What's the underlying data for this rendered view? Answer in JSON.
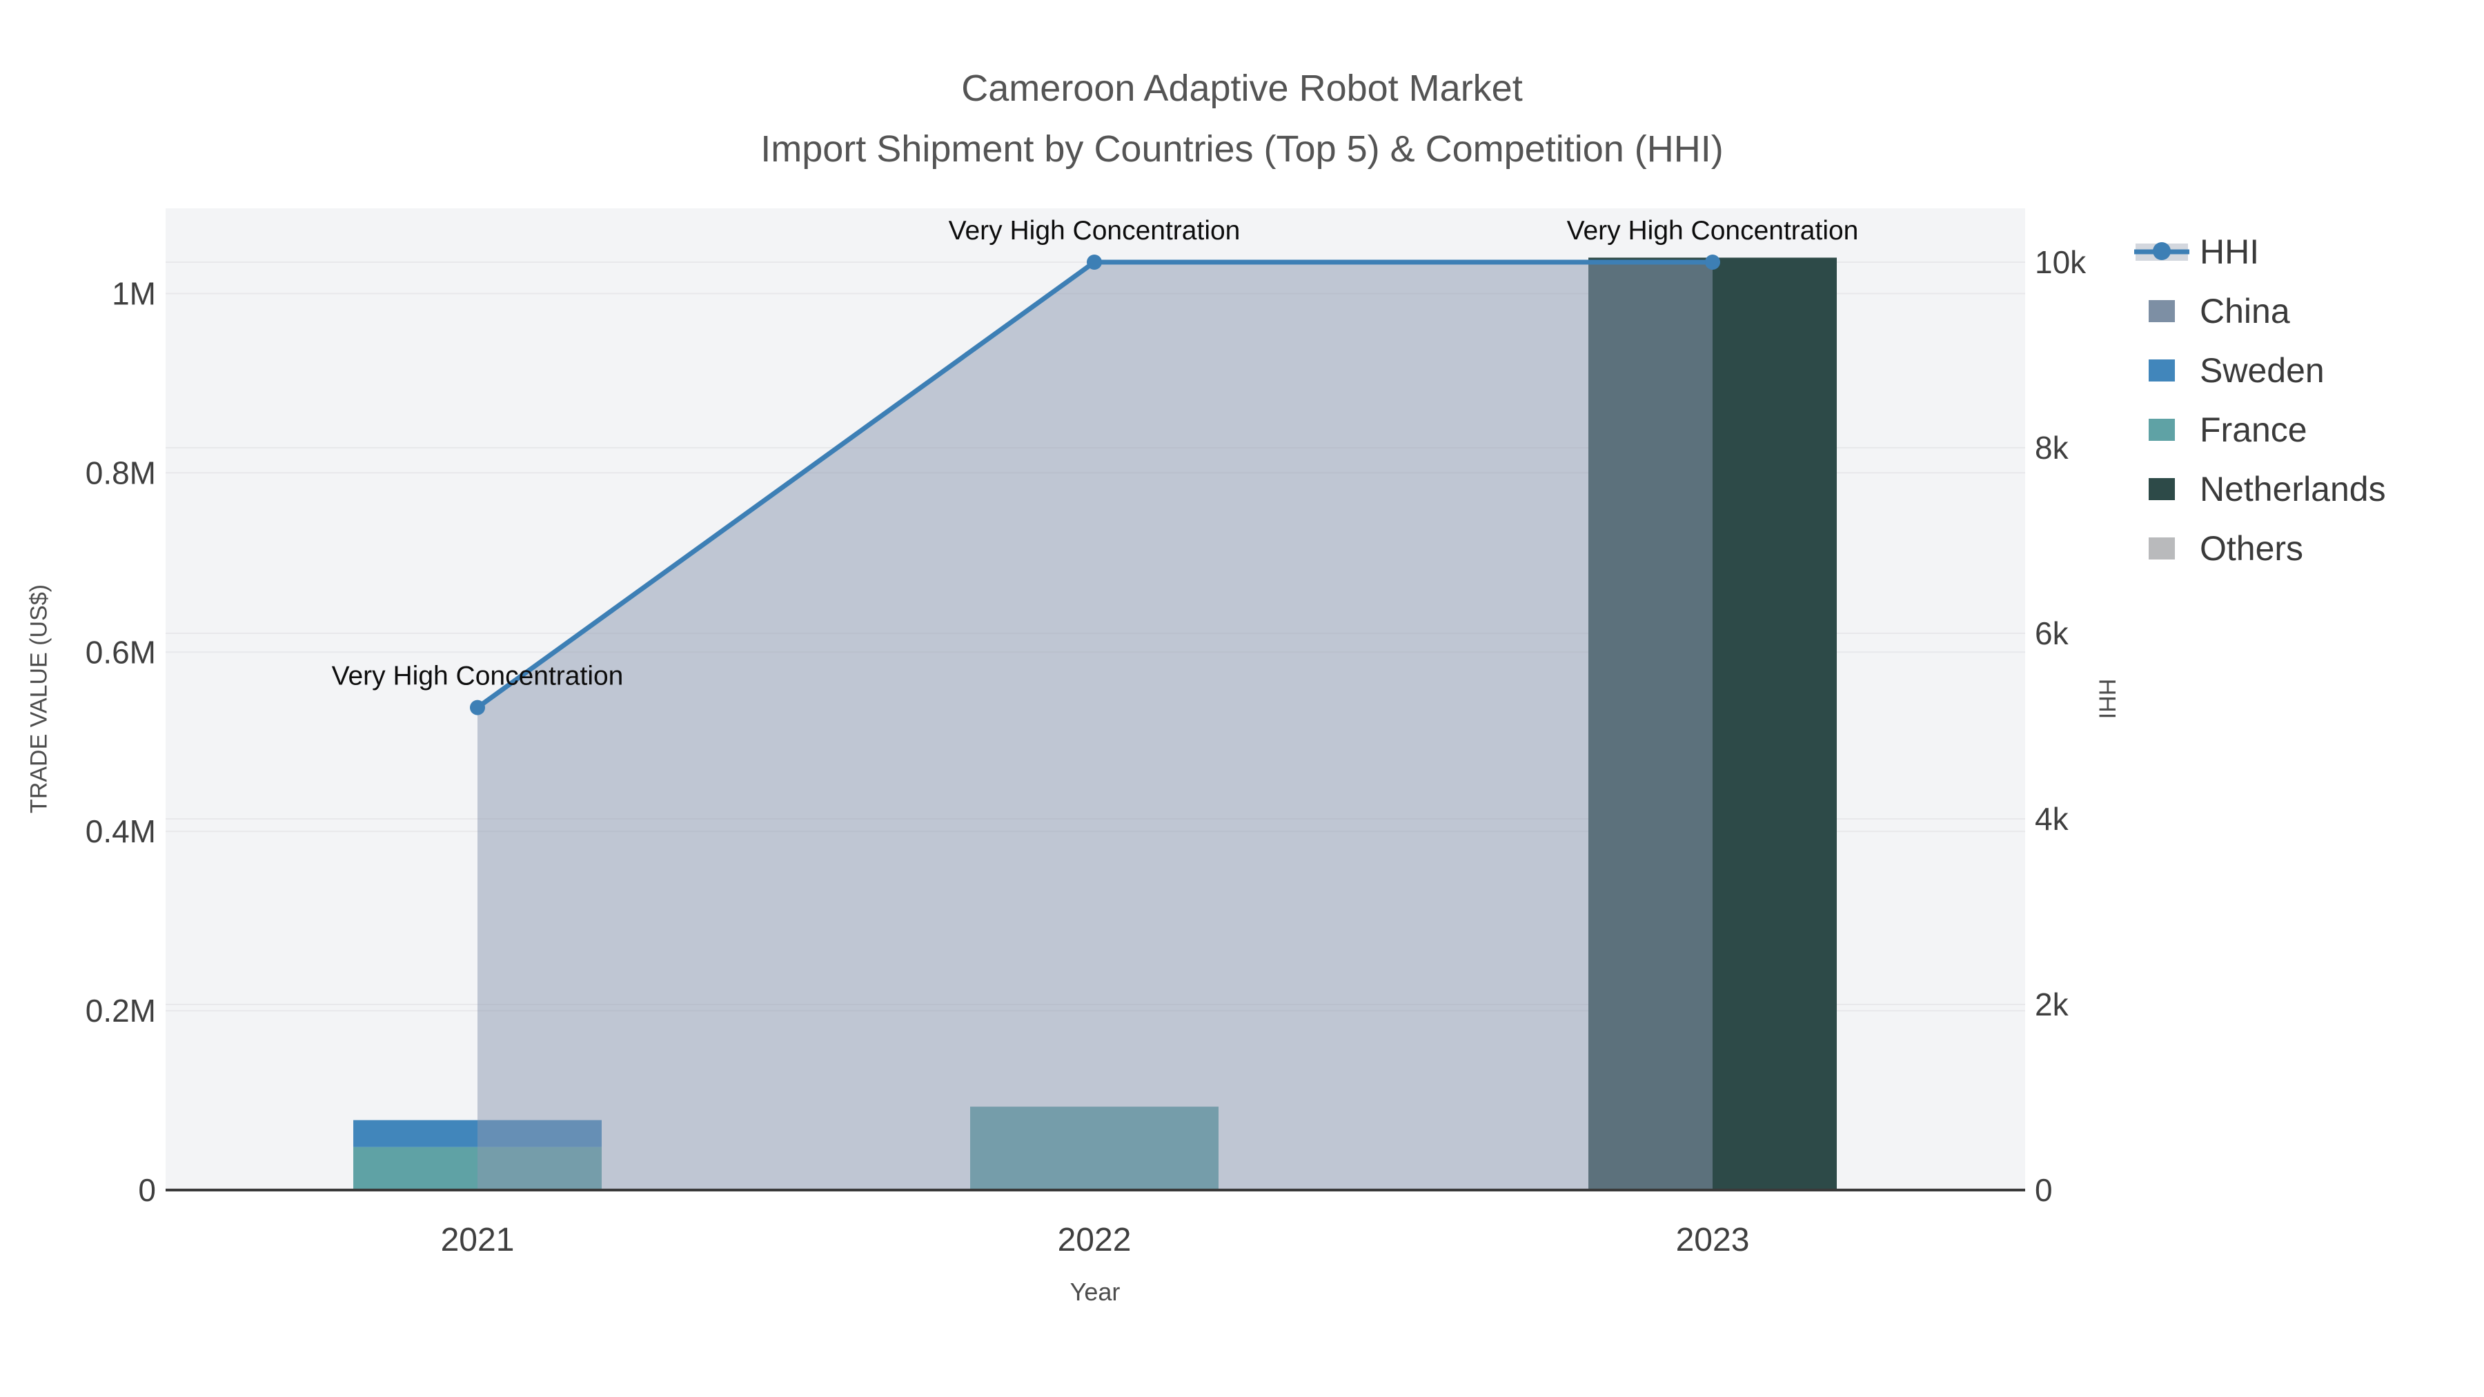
{
  "chart_data": {
    "type": "bar+line",
    "title": "Cameroon Adaptive Robot Market",
    "subtitle": "Import Shipment by Countries (Top 5) & Competition (HHI)",
    "categories": [
      "2021",
      "2022",
      "2023"
    ],
    "x_label": "Year",
    "y_left": {
      "label": "TRADE VALUE (US$)",
      "ticks": [
        "0",
        "0.2M",
        "0.4M",
        "0.6M",
        "0.8M",
        "1M"
      ],
      "tick_values": [
        0,
        200000,
        400000,
        600000,
        800000,
        1000000
      ],
      "max": 1095000
    },
    "y_right": {
      "label": "HHI",
      "ticks": [
        "0",
        "2k",
        "4k",
        "6k",
        "8k",
        "10k"
      ],
      "tick_values": [
        0,
        2000,
        4000,
        6000,
        8000,
        10000
      ],
      "max": 10580
    },
    "bar_series": [
      {
        "name": "France",
        "color": "#5fa2a5",
        "values": [
          48000,
          93000,
          0
        ]
      },
      {
        "name": "Sweden",
        "color": "#4186bb",
        "values": [
          30000,
          0,
          0
        ]
      },
      {
        "name": "Netherlands",
        "color": "#2d4a48",
        "values": [
          0,
          0,
          1040000
        ]
      },
      {
        "name": "China",
        "color": "#7d8fa4",
        "values": [
          0,
          0,
          0
        ]
      },
      {
        "name": "Others",
        "color": "#b9babc",
        "values": [
          0,
          0,
          0
        ]
      }
    ],
    "line_series": {
      "name": "HHI",
      "color": "#3d7fb5",
      "area_color": "rgba(139,152,175,0.5)",
      "values": [
        5200,
        10000,
        10000
      ],
      "annotations": [
        "Very High Concentration",
        "Very High Concentration",
        "Very High Concentration"
      ]
    },
    "grid": true,
    "legend_position": "right",
    "plot_background": "#f3f4f6"
  },
  "legend": {
    "items": [
      {
        "label": "HHI",
        "type": "line",
        "color": "#3d7fb5",
        "band": "#d3d7de"
      },
      {
        "label": "China",
        "type": "square",
        "color": "#7d8fa4"
      },
      {
        "label": "Sweden",
        "type": "square",
        "color": "#4186bb"
      },
      {
        "label": "France",
        "type": "square",
        "color": "#5fa2a5"
      },
      {
        "label": "Netherlands",
        "type": "square",
        "color": "#2d4a48"
      },
      {
        "label": "Others",
        "type": "square",
        "color": "#b9babc"
      }
    ]
  }
}
